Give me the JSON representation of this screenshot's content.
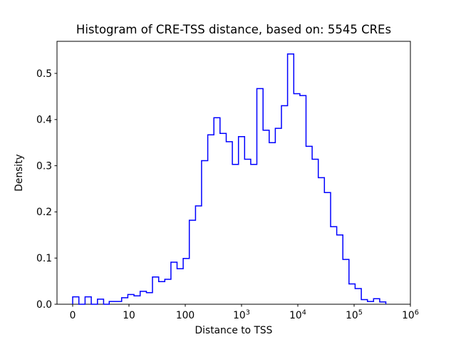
{
  "figure": {
    "title": "Histogram of CRE-TSS distance, based on: 5545 CREs",
    "xlabel": "Distance to TSS",
    "ylabel": "Density"
  },
  "chart_data": {
    "type": "histogram",
    "style": "step-outline",
    "line_color": "#0000ff",
    "background_color": "#ffffff",
    "frame_color": "#000000",
    "n_samples": 5545,
    "x_scale": "symlog",
    "linthresh": 10,
    "xlim": [
      -2.8,
      1000000
    ],
    "ylim": [
      0,
      0.569
    ],
    "grid": false,
    "legend": false,
    "bin_edges": [
      0,
      1.1,
      2.2,
      3.3,
      4.4,
      5.5,
      6.5,
      7.6,
      8.7,
      9.8,
      12.3,
      15.8,
      20.4,
      26.2,
      33.7,
      43.3,
      55.7,
      71.5,
      92,
      118,
      152,
      195,
      251,
      323,
      415,
      534,
      686,
      882,
      1134,
      1458,
      1874,
      2409,
      3097,
      3981,
      5118,
      6580,
      8459,
      10875,
      13980,
      17970,
      23101,
      29698,
      38178,
      49081,
      63096,
      81113,
      104276,
      134054,
      172337,
      221553,
      284804,
      366131,
      470679,
      605079,
      777862,
      1000000
    ],
    "densities": [
      0.016,
      0,
      0.016,
      0,
      0.011,
      0,
      0.006,
      0.006,
      0.014,
      0.021,
      0.018,
      0.028,
      0.025,
      0.059,
      0.049,
      0.054,
      0.091,
      0.077,
      0.099,
      0.182,
      0.213,
      0.311,
      0.367,
      0.404,
      0.37,
      0.352,
      0.303,
      0.363,
      0.314,
      0.303,
      0.467,
      0.377,
      0.35,
      0.381,
      0.43,
      0.542,
      0.456,
      0.452,
      0.342,
      0.314,
      0.274,
      0.242,
      0.168,
      0.15,
      0.097,
      0.044,
      0.034,
      0.01,
      0.006,
      0.012,
      0.005,
      0,
      0,
      0,
      0
    ],
    "xticks": [
      {
        "value": 0,
        "label": "0"
      },
      {
        "value": 10,
        "label": "10"
      },
      {
        "value": 100,
        "label": "100"
      },
      {
        "value": 1000,
        "label": "10",
        "exp": "3"
      },
      {
        "value": 10000,
        "label": "10",
        "exp": "4"
      },
      {
        "value": 100000,
        "label": "10",
        "exp": "5"
      },
      {
        "value": 1000000,
        "label": "10",
        "exp": "6"
      }
    ],
    "yticks": [
      {
        "value": 0.0,
        "label": "0.0"
      },
      {
        "value": 0.1,
        "label": "0.1"
      },
      {
        "value": 0.2,
        "label": "0.2"
      },
      {
        "value": 0.3,
        "label": "0.3"
      },
      {
        "value": 0.4,
        "label": "0.4"
      },
      {
        "value": 0.5,
        "label": "0.5"
      }
    ]
  }
}
